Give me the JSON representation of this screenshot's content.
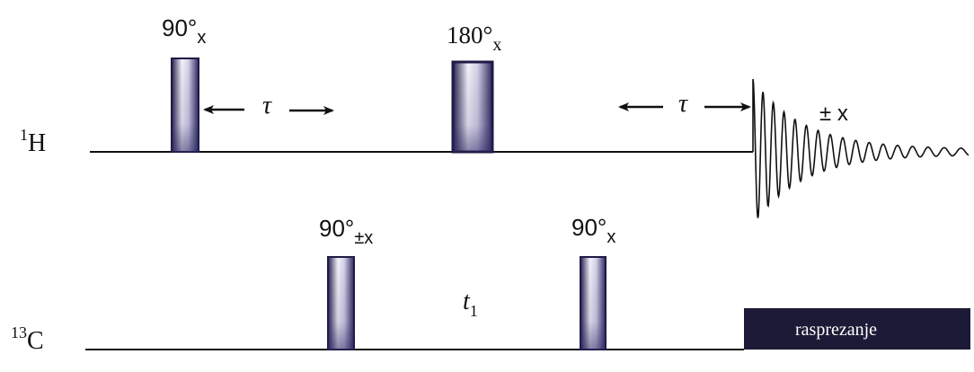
{
  "channels": {
    "proton": {
      "label_sup": "1",
      "label_main": "H"
    },
    "carbon": {
      "label_sup": "13",
      "label_main": "C"
    }
  },
  "pulses": {
    "h_90": {
      "angle": "90°",
      "phase": "x"
    },
    "h_180": {
      "angle": "180°",
      "phase": "x"
    },
    "c_90_first": {
      "angle": "90°",
      "phase": "±x"
    },
    "c_90_second": {
      "angle": "90°",
      "phase": "x"
    }
  },
  "delays": {
    "tau_1": "τ",
    "tau_2": "τ",
    "t1_main": "t",
    "t1_sub": "1"
  },
  "acquisition": {
    "phase": "± x"
  },
  "decoupling": {
    "label": "rasprezanje"
  },
  "colors": {
    "pulse_dark": "#2a2660",
    "pulse_light": "#ffffff",
    "decouple_fill": "#1c1a36",
    "line": "#111111"
  }
}
